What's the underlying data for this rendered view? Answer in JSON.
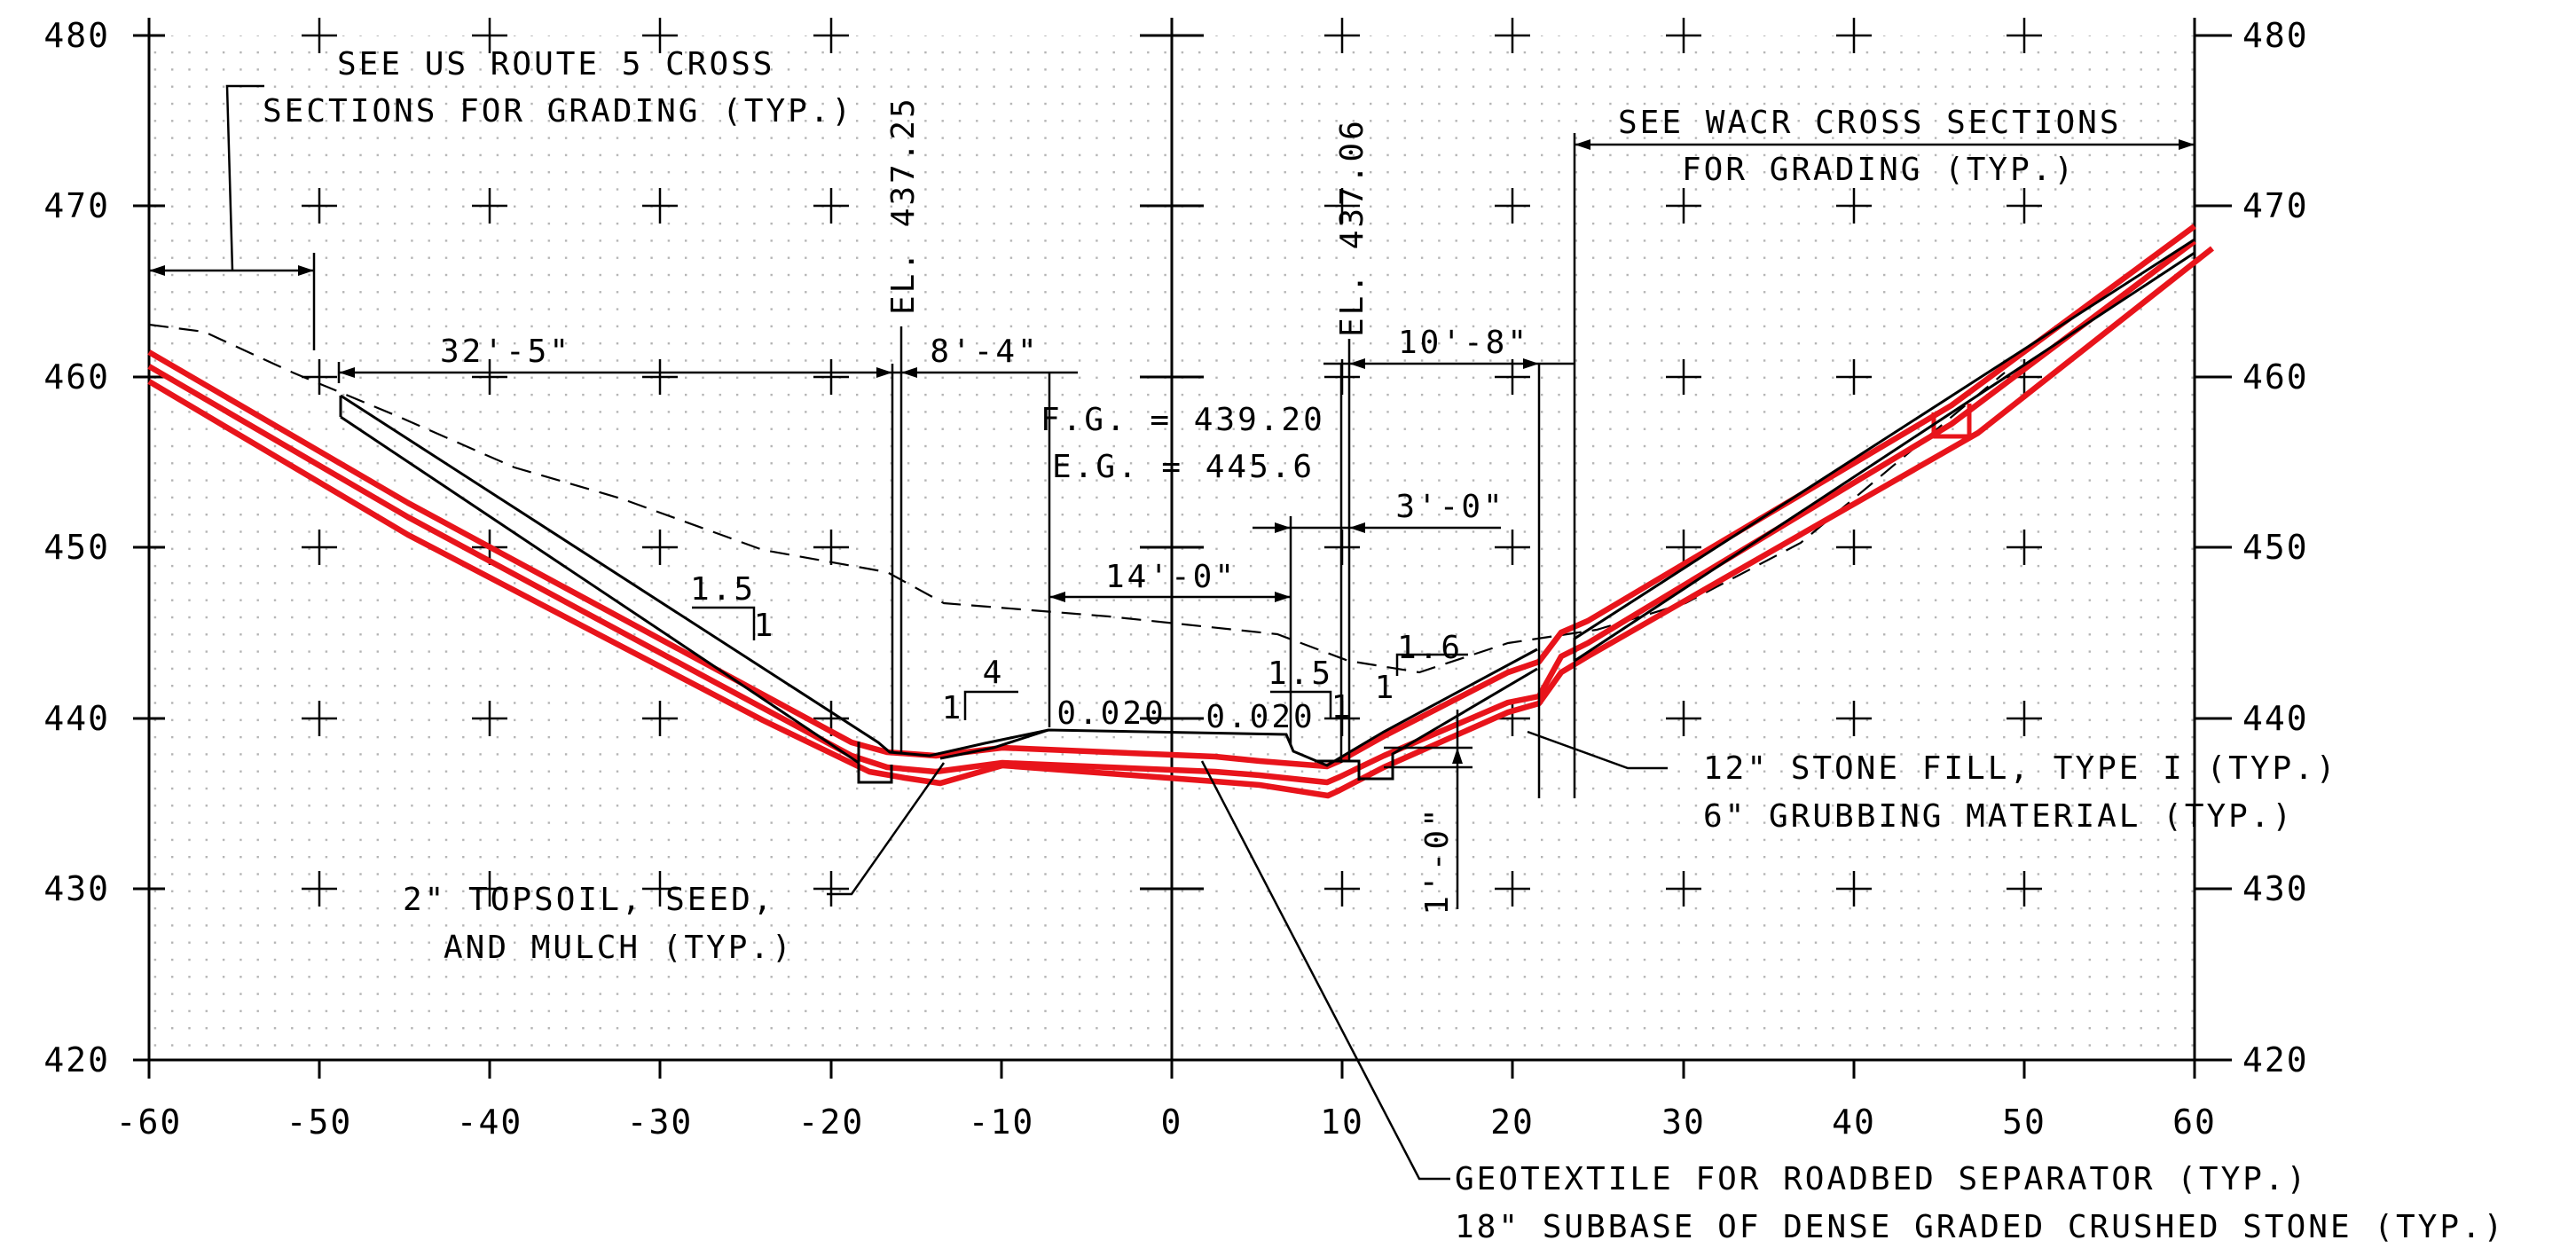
{
  "axes": {
    "x_ticks": [
      "-60",
      "-50",
      "-40",
      "-30",
      "-20",
      "-10",
      "0",
      "10",
      "20",
      "30",
      "40",
      "50",
      "60"
    ],
    "y_ticks": [
      "480",
      "470",
      "460",
      "450",
      "440",
      "430",
      "420"
    ]
  },
  "notes": {
    "us_route_1": "SEE US ROUTE 5 CROSS",
    "us_route_2": "SECTIONS FOR GRADING (TYP.)",
    "wacr_1": "SEE WACR CROSS SECTIONS",
    "wacr_2": "FOR GRADING (TYP.)",
    "topsoil_1": "2\" TOPSOIL, SEED,",
    "topsoil_2": "AND MULCH (TYP.)",
    "stone_fill": "12\" STONE FILL, TYPE I (TYP.)",
    "grubbing": "6\" GRUBBING MATERIAL (TYP.)",
    "geotextile": "GEOTEXTILE FOR ROADBED SEPARATOR (TYP.)",
    "subbase": "18\" SUBBASE OF DENSE GRADED CRUSHED STONE (TYP.)"
  },
  "dimensions": {
    "d1": "32'-5\"",
    "d2": "8'-4\"",
    "d3": "10'-8\"",
    "d4": "3'-0\"",
    "d5": "14'-0\"",
    "d6": "1'-0\""
  },
  "elevations": {
    "el_left": "EL. 437.25",
    "el_right": "EL. 437.06",
    "fg": "F.G. = 439.20",
    "eg": "E.G. = 445.6"
  },
  "slopes": {
    "s1_run": "1.5",
    "s1_rise": "1",
    "s2_run": "4",
    "s2_rise": "1",
    "s3_run": "1.5",
    "s3_rise": "1",
    "s4_run": "1.6",
    "s4_rise": "1",
    "cross_left": "0.020",
    "cross_right": "0.020"
  },
  "colors": {
    "red": "#e8141b",
    "grid_dot": "#b4b4b4",
    "line": "#000000"
  }
}
